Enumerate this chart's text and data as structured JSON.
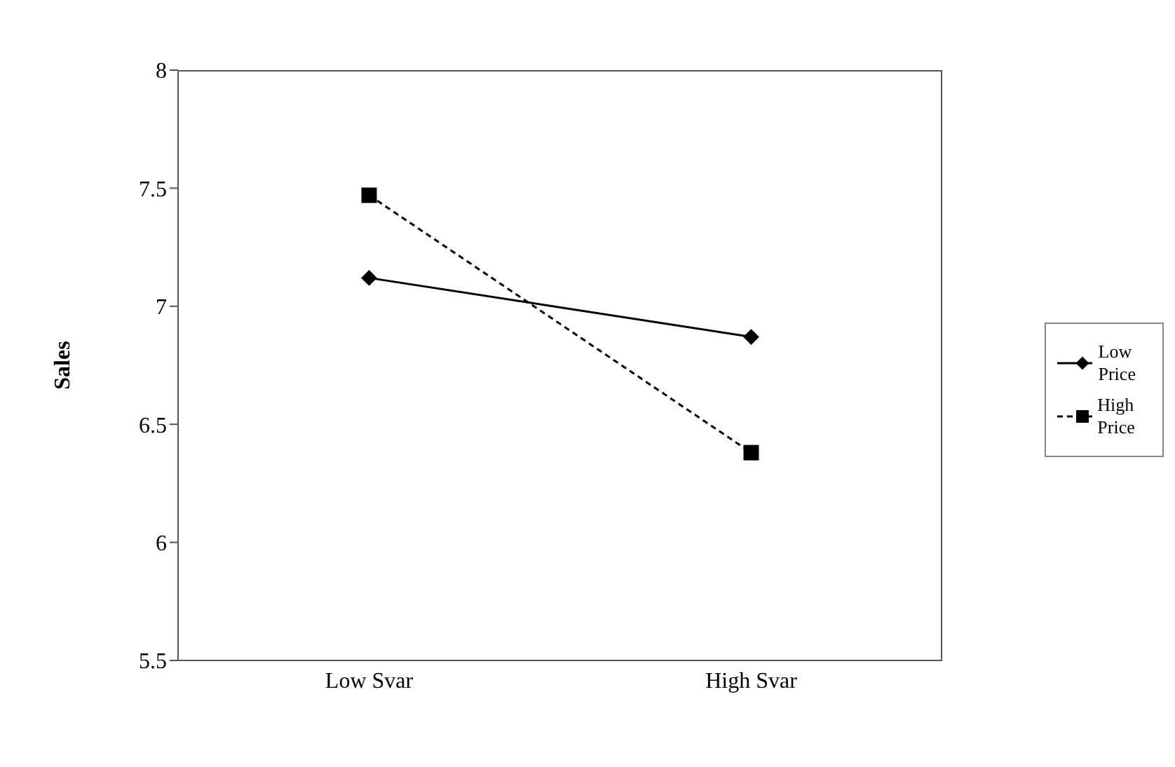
{
  "chart_data": {
    "type": "line",
    "ylabel": "Sales",
    "categories": [
      "Low Svar",
      "High Svar"
    ],
    "series": [
      {
        "name": "Low Price",
        "color": "#000000",
        "values": [
          7.12,
          6.87
        ],
        "marker": "diamond",
        "line_style": "solid"
      },
      {
        "name": "High Price",
        "color": "#000000",
        "values": [
          7.47,
          6.38
        ],
        "marker": "square",
        "line_style": "dashed"
      }
    ],
    "ylim": [
      5.5,
      8
    ],
    "yticks": [
      5.5,
      6,
      6.5,
      7,
      7.5,
      8
    ],
    "grid": false,
    "legend": "right"
  }
}
